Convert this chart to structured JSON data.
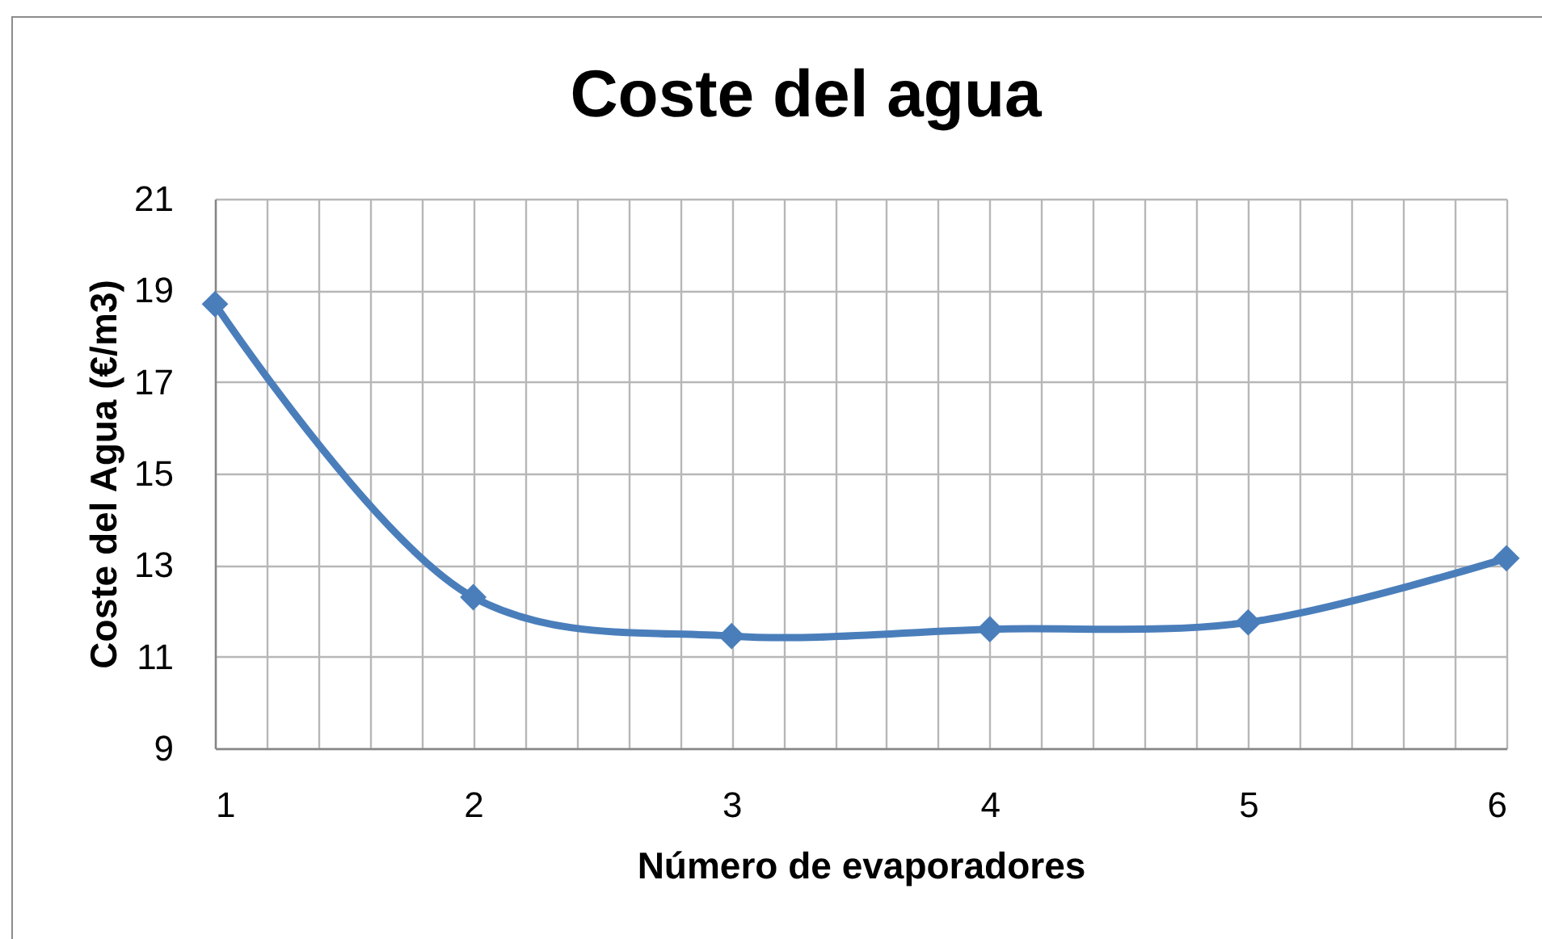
{
  "chart_data": {
    "type": "line",
    "title": "Coste del agua",
    "xlabel": "Número de evaporadores",
    "ylabel": "Coste del Agua (€/m3)",
    "x": [
      1,
      2,
      3,
      4,
      5,
      6
    ],
    "series": [
      {
        "color": "#4a7ebb",
        "values": [
          18.7,
          12.3,
          11.45,
          11.6,
          11.75,
          13.15
        ]
      }
    ],
    "xlim": [
      1,
      6
    ],
    "xticks": [
      1,
      {
        "value": 1.2,
        "label": null
      },
      {
        "value": 1.4,
        "label": null
      },
      {
        "value": 1.6,
        "label": null
      },
      {
        "value": 1.8,
        "label": null
      },
      2,
      {
        "value": 2.2,
        "label": null
      },
      {
        "value": 2.4,
        "label": null
      },
      {
        "value": 2.6,
        "label": null
      },
      {
        "value": 2.8,
        "label": null
      },
      3,
      {
        "value": 3.2,
        "label": null
      },
      {
        "value": 3.4,
        "label": null
      },
      {
        "value": 3.6,
        "label": null
      },
      {
        "value": 3.8,
        "label": null
      },
      4,
      {
        "value": 4.2,
        "label": null
      },
      {
        "value": 4.4,
        "label": null
      },
      {
        "value": 4.6,
        "label": null
      },
      {
        "value": 4.8,
        "label": null
      },
      5,
      {
        "value": 5.2,
        "label": null
      },
      {
        "value": 5.4,
        "label": null
      },
      {
        "value": 5.6,
        "label": null
      },
      {
        "value": 5.8,
        "label": null
      },
      6
    ],
    "ylim": [
      9,
      21
    ],
    "yticks": [
      9,
      11,
      13,
      15,
      17,
      19,
      21
    ],
    "grid": true,
    "marker": "diamond",
    "line_style": "solid"
  }
}
